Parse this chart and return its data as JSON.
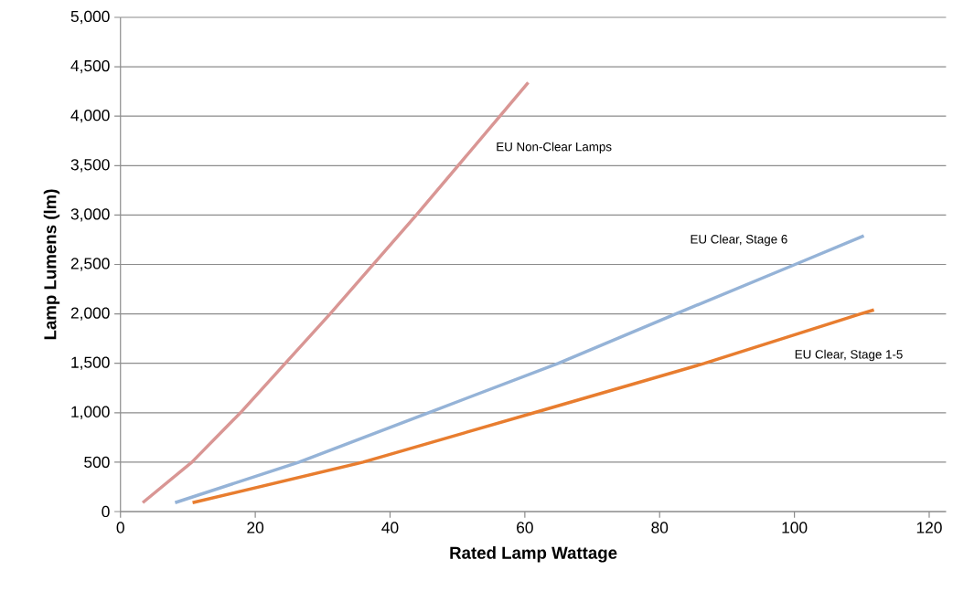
{
  "chart_data": {
    "type": "line",
    "xlabel": "Rated Lamp  Wattage",
    "ylabel": "Lamp Lumens (lm)",
    "xlim": [
      0,
      122.5
    ],
    "ylim": [
      0,
      5000
    ],
    "xticks": [
      0,
      20,
      40,
      60,
      80,
      100,
      120
    ],
    "yticks": [
      {
        "value": 0,
        "label": "0"
      },
      {
        "value": 500,
        "label": "500"
      },
      {
        "value": 1000,
        "label": "1,000"
      },
      {
        "value": 1500,
        "label": "1,500"
      },
      {
        "value": 2000,
        "label": "2,000"
      },
      {
        "value": 2500,
        "label": "2,500"
      },
      {
        "value": 3000,
        "label": "3,000"
      },
      {
        "value": 3500,
        "label": "3,500"
      },
      {
        "value": 4000,
        "label": "4,000"
      },
      {
        "value": 4500,
        "label": "4,500"
      },
      {
        "value": 5000,
        "label": "5,000"
      }
    ],
    "grid": "y",
    "marker": "none",
    "line_style": "solid",
    "series": [
      {
        "name": "EU Non-Clear Lamps",
        "color": "#d99694",
        "x": [
          3.3,
          10.6,
          17.8,
          31.1,
          43.9,
          56.3,
          60.5
        ],
        "values": [
          90,
          500,
          1000,
          2000,
          3000,
          4000,
          4340
        ]
      },
      {
        "name": "EU Clear, Stage 6",
        "color": "#95b3d7",
        "x": [
          8.1,
          26.5,
          45.7,
          65.0,
          82.4,
          100.1,
          110.3
        ],
        "values": [
          90,
          500,
          1000,
          1500,
          2000,
          2500,
          2790
        ]
      },
      {
        "name": "EU Clear, Stage 1-5",
        "color": "#e87d2f",
        "x": [
          10.7,
          36.0,
          61.4,
          86.7,
          109.8,
          111.8
        ],
        "values": [
          90,
          500,
          1000,
          1500,
          2000,
          2040
        ]
      }
    ]
  }
}
